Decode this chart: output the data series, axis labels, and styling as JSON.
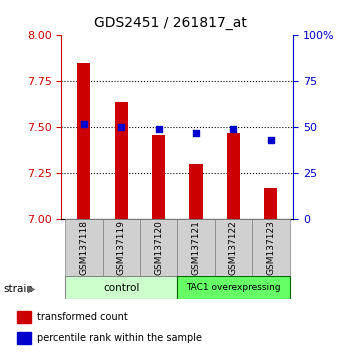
{
  "title": "GDS2451 / 261817_at",
  "samples": [
    "GSM137118",
    "GSM137119",
    "GSM137120",
    "GSM137121",
    "GSM137122",
    "GSM137123"
  ],
  "transformed_counts": [
    7.85,
    7.64,
    7.46,
    7.3,
    7.47,
    7.17
  ],
  "percentile_ranks": [
    52,
    50,
    49,
    47,
    49,
    43
  ],
  "ylim_left": [
    7.0,
    8.0
  ],
  "ylim_right": [
    0,
    100
  ],
  "yticks_left": [
    7.0,
    7.25,
    7.5,
    7.75,
    8.0
  ],
  "yticks_right": [
    0,
    25,
    50,
    75,
    100
  ],
  "bar_color": "#cc0000",
  "dot_color": "#0000cc",
  "bar_bottom": 7.0,
  "groups": [
    {
      "label": "control",
      "start": 0,
      "end": 3,
      "color": "#ccffcc"
    },
    {
      "label": "TAC1 overexpressing",
      "start": 3,
      "end": 6,
      "color": "#66ff66"
    }
  ],
  "legend_items": [
    {
      "color": "#cc0000",
      "label": "transformed count"
    },
    {
      "color": "#0000cc",
      "label": "percentile rank within the sample"
    }
  ],
  "grid_color": "black",
  "tick_color_left": "#cc0000",
  "tick_color_right": "#0000cc"
}
